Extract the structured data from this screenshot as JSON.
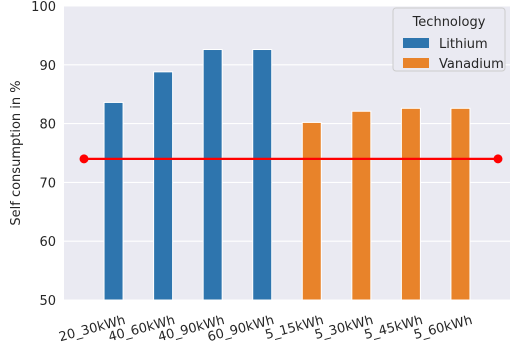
{
  "chart_data": {
    "type": "bar",
    "categories": [
      "20_30kWh",
      "40_60kWh",
      "40_90kWh",
      "60_90kWh",
      "5_15kWh",
      "5_30kWh",
      "5_45kWh",
      "5_60kWh"
    ],
    "series": [
      {
        "name": "Lithium",
        "color": "#2e75ae",
        "values": [
          83.6,
          88.8,
          92.6,
          92.6,
          null,
          null,
          null,
          null
        ]
      },
      {
        "name": "Vanadium",
        "color": "#e8832a",
        "values": [
          null,
          null,
          null,
          null,
          80.2,
          82.1,
          82.6,
          82.6
        ]
      }
    ],
    "reference_line": {
      "y": 74.0,
      "color": "#ff0000"
    },
    "ylabel": "Self consumption in %",
    "xlabel": "",
    "ylim": [
      50,
      100
    ],
    "yticks": [
      50,
      60,
      70,
      80,
      90,
      100
    ],
    "legend": {
      "title": "Technology",
      "position": "top-right"
    },
    "grid": true,
    "background": "#eaeaf2",
    "grid_color": "#ffffff"
  }
}
